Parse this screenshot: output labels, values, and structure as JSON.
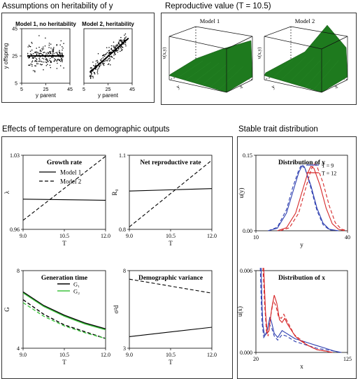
{
  "sections": {
    "heritability": "Assumptions on heritability of y",
    "reproductive": "Reproductive value (T = 10.5)",
    "temperature": "Effects of temperature on demographic outputs",
    "stable": "Stable trait distribution"
  },
  "colors": {
    "green": "#1e7a1e",
    "blue": "#2e3fb0",
    "red": "#d62728",
    "g2": "#3ec43e"
  },
  "chart_data": [
    {
      "id": "heritability-model1",
      "type": "scatter",
      "title": "Model 1, no heritability",
      "xlabel": "y parent",
      "ylabel": "y offspring",
      "xlim": [
        5,
        45
      ],
      "ylim": [
        5,
        45
      ],
      "xticks": [
        "5",
        "25",
        "45"
      ],
      "yticks": [
        "5",
        "25",
        "45"
      ],
      "fit": {
        "from": [
          10,
          25
        ],
        "to": [
          40,
          25
        ]
      }
    },
    {
      "id": "heritability-model2",
      "type": "scatter",
      "title": "Model 2, heritability",
      "xlabel": "y parent",
      "xlim": [
        5,
        45
      ],
      "ylim": [
        5,
        45
      ],
      "xticks": [
        "5",
        "25",
        "45"
      ],
      "fit": {
        "from": [
          10,
          13
        ],
        "to": [
          42,
          38
        ]
      }
    },
    {
      "id": "repro-model1",
      "type": "surface",
      "title": "Model 1",
      "zlabel": "v(x,y)",
      "axes": [
        "y",
        "x"
      ],
      "shape": "rising toward high x"
    },
    {
      "id": "repro-model2",
      "type": "surface",
      "title": "Model 2",
      "zlabel": "v(x,y)",
      "axes": [
        "y",
        "x"
      ],
      "shape": "peak at high x and high y"
    },
    {
      "id": "growth-rate",
      "type": "line",
      "title": "Growth rate",
      "ylabel": "λ",
      "xlabel": "T",
      "xlim": [
        9,
        12
      ],
      "ylim": [
        0.96,
        1.03
      ],
      "xticks": [
        "9.0",
        "10.5",
        "12.0"
      ],
      "yticks": [
        "0.96",
        "1.03"
      ],
      "legend": {
        "position": "top-right",
        "entries": [
          "Model 1",
          "Model 2"
        ]
      },
      "series": [
        {
          "name": "Model 1",
          "style": "solid",
          "x": [
            9,
            12
          ],
          "y": [
            0.9885,
            0.9875
          ]
        },
        {
          "name": "Model 2",
          "style": "dashed",
          "x": [
            9,
            12
          ],
          "y": [
            0.9685,
            1.029
          ]
        }
      ]
    },
    {
      "id": "net-reproductive-rate",
      "type": "line",
      "title": "Net reproductive rate",
      "ylabel": "R₀",
      "xlabel": "T",
      "xlim": [
        9,
        12
      ],
      "ylim": [
        0.8,
        1.1
      ],
      "xticks": [
        "9.0",
        "10.5",
        "12.0"
      ],
      "yticks": [
        "0.8",
        "1.1"
      ],
      "series": [
        {
          "name": "Model 1",
          "style": "solid",
          "x": [
            9,
            12
          ],
          "y": [
            0.955,
            0.965
          ]
        },
        {
          "name": "Model 2",
          "style": "dashed",
          "x": [
            9,
            12
          ],
          "y": [
            0.81,
            1.08
          ]
        }
      ]
    },
    {
      "id": "generation-time",
      "type": "line",
      "title": "Generation time",
      "ylabel": "G",
      "xlabel": "T",
      "xlim": [
        9,
        12
      ],
      "ylim": [
        4,
        8
      ],
      "xticks": [
        "9.0",
        "10.5",
        "12.0"
      ],
      "yticks": [
        "4",
        "8"
      ],
      "legend": {
        "position": "top-right",
        "entries": [
          "G₁",
          "G₂"
        ]
      },
      "series": [
        {
          "name": "G₁",
          "color": "#000000",
          "style": "solid",
          "x": [
            9,
            9.75,
            10.5,
            11.25,
            12
          ],
          "y": [
            6.9,
            6.2,
            5.7,
            5.3,
            5.0
          ]
        },
        {
          "name": "G₂",
          "color": "#3ec43e",
          "style": "solid",
          "x": [
            9,
            9.75,
            10.5,
            11.25,
            12
          ],
          "y": [
            6.85,
            6.15,
            5.65,
            5.25,
            4.95
          ]
        },
        {
          "name": "G₁",
          "color": "#000000",
          "style": "dashed",
          "x": [
            9,
            9.75,
            10.5,
            11.25,
            12
          ],
          "y": [
            6.5,
            5.75,
            5.2,
            4.85,
            4.5
          ]
        },
        {
          "name": "G₂",
          "color": "#3ec43e",
          "style": "dashed",
          "x": [
            9,
            9.75,
            10.5,
            11.25,
            12
          ],
          "y": [
            6.35,
            5.65,
            5.15,
            4.8,
            4.5
          ]
        }
      ]
    },
    {
      "id": "demographic-variance",
      "type": "line",
      "title": "Demographic variance",
      "ylabel": "σ²d",
      "xlabel": "T",
      "xlim": [
        9,
        12
      ],
      "ylim": [
        3,
        8
      ],
      "xticks": [
        "9.0",
        "10.5",
        "12.0"
      ],
      "yticks": [
        "3",
        "8"
      ],
      "series": [
        {
          "name": "Model 1",
          "style": "solid",
          "x": [
            9,
            12
          ],
          "y": [
            3.75,
            4.35
          ]
        },
        {
          "name": "Model 2",
          "style": "dashed",
          "x": [
            9,
            12
          ],
          "y": [
            7.45,
            6.55
          ]
        }
      ]
    },
    {
      "id": "distribution-y",
      "type": "line",
      "title": "Distribution of y",
      "ylabel": "u(y)",
      "xlabel": "y",
      "xlim": [
        10,
        40
      ],
      "ylim": [
        0,
        0.15
      ],
      "xticks": [
        "10",
        "40"
      ],
      "yticks": [
        "0.00",
        "0.15"
      ],
      "legend": {
        "position": "top-right",
        "entries": [
          "T = 9",
          "T = 12"
        ]
      },
      "series": [
        {
          "name": "T = 9",
          "color": "#2e3fb0",
          "style": "solid",
          "x": [
            14,
            17,
            20,
            22,
            24,
            25,
            26,
            28,
            30,
            32,
            34,
            37
          ],
          "y": [
            0,
            0.005,
            0.035,
            0.075,
            0.115,
            0.128,
            0.125,
            0.09,
            0.045,
            0.015,
            0.003,
            0
          ]
        },
        {
          "name": "T = 9",
          "color": "#2e3fb0",
          "style": "dashed",
          "x": [
            14,
            17,
            20,
            22,
            24,
            25,
            26,
            28,
            30,
            32,
            34,
            37
          ],
          "y": [
            0,
            0.007,
            0.042,
            0.085,
            0.12,
            0.132,
            0.126,
            0.085,
            0.04,
            0.012,
            0.002,
            0
          ]
        },
        {
          "name": "T = 12",
          "color": "#d62728",
          "style": "solid",
          "x": [
            17,
            20,
            23,
            25,
            27,
            28,
            29,
            31,
            33,
            35,
            37,
            39
          ],
          "y": [
            0,
            0.006,
            0.035,
            0.075,
            0.115,
            0.128,
            0.124,
            0.09,
            0.045,
            0.014,
            0.003,
            0
          ]
        },
        {
          "name": "T = 12",
          "color": "#d62728",
          "style": "dashed",
          "x": [
            18,
            21,
            24,
            26,
            28,
            29,
            30,
            32,
            34,
            36,
            38,
            40
          ],
          "y": [
            0,
            0.006,
            0.035,
            0.078,
            0.12,
            0.133,
            0.128,
            0.095,
            0.05,
            0.016,
            0.003,
            0
          ]
        }
      ]
    },
    {
      "id": "distribution-x",
      "type": "line",
      "title": "Distribution of x",
      "ylabel": "u(x)",
      "xlabel": "x",
      "xlim": [
        20,
        125
      ],
      "ylim": [
        0,
        0.006
      ],
      "xticks": [
        "20",
        "125"
      ],
      "yticks": [
        "0.000",
        "0.006"
      ],
      "series": [
        {
          "name": "T = 9",
          "color": "#2e3fb0",
          "style": "solid",
          "x": [
            26,
            27,
            28,
            30,
            33,
            36,
            38,
            41,
            45,
            50,
            55,
            60,
            65,
            70,
            80,
            90,
            100,
            110,
            118
          ],
          "y": [
            0.0062,
            0.0035,
            0.002,
            0.0012,
            0.0016,
            0.0026,
            0.0022,
            0.0014,
            0.0011,
            0.0016,
            0.0014,
            0.0012,
            0.001,
            0.0009,
            0.0007,
            0.0005,
            0.0003,
            0.0001,
            0
          ]
        },
        {
          "name": "T = 9",
          "color": "#2e3fb0",
          "style": "dashed",
          "x": [
            25,
            26,
            27,
            29,
            32,
            35,
            38,
            41,
            45,
            50,
            55,
            60,
            65,
            70,
            80,
            90,
            100,
            110,
            116
          ],
          "y": [
            0.0062,
            0.004,
            0.0022,
            0.0011,
            0.0014,
            0.0021,
            0.0018,
            0.0012,
            0.0009,
            0.0013,
            0.0012,
            0.001,
            0.0008,
            0.0007,
            0.0005,
            0.0003,
            0.0002,
            0.0001,
            0
          ]
        },
        {
          "name": "T = 12",
          "color": "#d62728",
          "style": "solid",
          "x": [
            29,
            30,
            31,
            33,
            35,
            38,
            41,
            44,
            47,
            50,
            53,
            56,
            60,
            65,
            70,
            80,
            90,
            100,
            108
          ],
          "y": [
            0.0062,
            0.0045,
            0.003,
            0.0014,
            0.0016,
            0.0032,
            0.0042,
            0.0036,
            0.0024,
            0.0022,
            0.0025,
            0.0021,
            0.0017,
            0.0012,
            0.0009,
            0.0005,
            0.0002,
            0.0001,
            0
          ]
        },
        {
          "name": "T = 12",
          "color": "#d62728",
          "style": "dashed",
          "x": [
            28,
            29,
            30,
            32,
            34,
            37,
            40,
            43,
            46,
            49,
            52,
            55,
            59,
            64,
            70,
            80,
            90,
            100,
            106
          ],
          "y": [
            0.0062,
            0.005,
            0.0035,
            0.0016,
            0.0012,
            0.0027,
            0.0038,
            0.0034,
            0.0026,
            0.0025,
            0.0028,
            0.0024,
            0.0019,
            0.0013,
            0.001,
            0.0005,
            0.0002,
            0.0001,
            0
          ]
        }
      ]
    }
  ]
}
